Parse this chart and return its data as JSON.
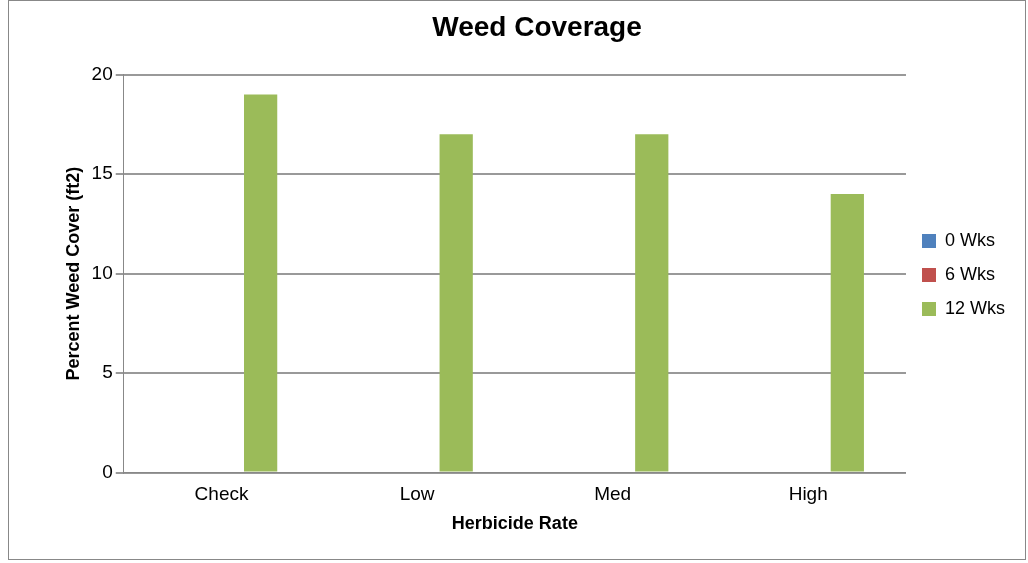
{
  "chart_data": {
    "type": "bar",
    "title": "Weed Coverage",
    "xlabel": "Herbicide Rate",
    "ylabel": "Percent Weed Cover (ft2)",
    "categories": [
      "Check",
      "Low",
      "Med",
      "High"
    ],
    "series": [
      {
        "name": "0 Wks",
        "color": "#4f81bd",
        "values": [
          0,
          0,
          0,
          0
        ]
      },
      {
        "name": "6 Wks",
        "color": "#c0504d",
        "values": [
          0,
          0,
          0,
          0
        ]
      },
      {
        "name": "12 Wks",
        "color": "#9bbb59",
        "values": [
          19,
          17,
          17,
          14
        ]
      }
    ],
    "ylim": [
      0,
      20
    ],
    "yticks": [
      0,
      5,
      10,
      15,
      20
    ],
    "grid": "y",
    "legend": "right"
  }
}
